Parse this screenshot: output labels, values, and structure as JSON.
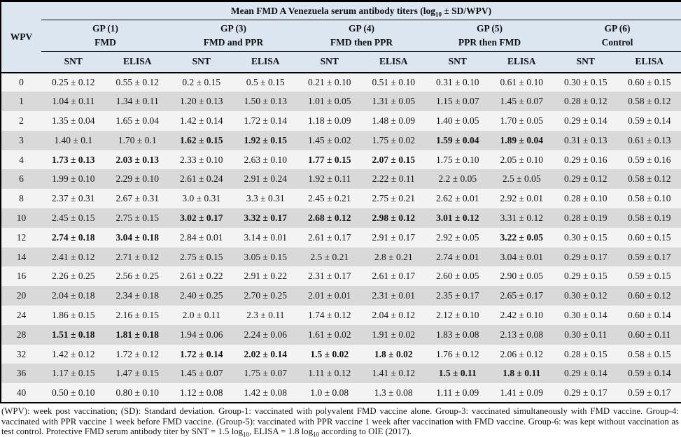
{
  "header": {
    "row_header": "WPV",
    "title_prefix": "Mean FMD A Venezuela serum antibody titers (log",
    "title_sub": "10",
    "title_suffix": " ± SD/WPV)",
    "groups": [
      {
        "label": "GP (1)",
        "sublabel": "FMD"
      },
      {
        "label": "GP (3)",
        "sublabel": "FMD and PPR"
      },
      {
        "label": "GP (4)",
        "sublabel": "FMD then PPR"
      },
      {
        "label": "GP (5)",
        "sublabel": "PPR then FMD"
      },
      {
        "label": "GP (6)",
        "sublabel": "Control"
      }
    ],
    "subcolumns": [
      "SNT",
      "ELISA"
    ]
  },
  "table": {
    "rows": [
      {
        "wpv": "0",
        "values": [
          "0.25 ± 0.12",
          "0.55 ± 0.12",
          "0.2 ± 0.15",
          "0.5 ± 0.15",
          "0.21 ± 0.10",
          "0.51 ± 0.10",
          "0.31 ± 0.10",
          "0.61 ± 0.10",
          "0.30 ± 0.15",
          "0.60 ± 0.15"
        ],
        "bold": []
      },
      {
        "wpv": "1",
        "values": [
          "1.04 ± 0.11",
          "1.34 ± 0.11",
          "1.20 ± 0.13",
          "1.50 ± 0.13",
          "1.01 ± 0.05",
          "1.31 ± 0.05",
          "1.15 ± 0.07",
          "1.45 ± 0.07",
          "0.28 ± 0.12",
          "0.58 ± 0.12"
        ],
        "bold": []
      },
      {
        "wpv": "2",
        "values": [
          "1.35 ± 0.04",
          "1.65 ± 0.04",
          "1.42 ± 0.14",
          "1.72 ± 0.14",
          "1.18 ± 0.09",
          "1.48 ± 0.09",
          "1.40 ± 0.05",
          "1.70 ± 0.05",
          "0.29 ± 0.14",
          "0.59 ± 0.14"
        ],
        "bold": []
      },
      {
        "wpv": "3",
        "values": [
          "1.40 ± 0.1",
          "1.70 ± 0.1",
          "1.62 ± 0.15",
          "1.92 ± 0.15",
          "1.45 ± 0.02",
          "1.75 ± 0.02",
          "1.59 ± 0.04",
          "1.89 ± 0.04",
          "0.31 ± 0.13",
          "0.61 ± 0.13"
        ],
        "bold": [
          2,
          3,
          6,
          7
        ]
      },
      {
        "wpv": "4",
        "values": [
          "1.73 ± 0.13",
          "2.03 ± 0.13",
          "2.33 ± 0.10",
          "2.63 ± 0.10",
          "1.77 ± 0.15",
          "2.07 ± 0.15",
          "1.75 ± 0.10",
          "2.05 ± 0.10",
          "0.29 ± 0.16",
          "0.59 ± 0.16"
        ],
        "bold": [
          0,
          1,
          4,
          5
        ]
      },
      {
        "wpv": "6",
        "values": [
          "1.99 ± 0.10",
          "2.29 ± 0.10",
          "2.61 ± 0.24",
          "2.91 ± 0.24",
          "1.92 ± 0.11",
          "2.22 ± 0.11",
          "2.2 ± 0.05",
          "2.5 ± 0.05",
          "0.29 ± 0.12",
          "0.58 ± 0.12"
        ],
        "bold": []
      },
      {
        "wpv": "8",
        "values": [
          "2.37 ± 0.31",
          "2.67 ± 0.31",
          "3.0 ± 0.31",
          "3.3 ± 0.31",
          "2.45 ± 0.21",
          "2.75 ± 0.21",
          "2.62 ± 0.01",
          "2.92 ± 0.01",
          "0.28 ± 0.10",
          "0.58 ± 0.10"
        ],
        "bold": []
      },
      {
        "wpv": "10",
        "values": [
          "2.45 ± 0.15",
          "2.75 ± 0.15",
          "3.02 ± 0.17",
          "3.32 ± 0.17",
          "2.68 ± 0.12",
          "2.98 ± 0.12",
          "3.01 ± 0.12",
          "3.31 ± 0.12",
          "0.28 ± 0.19",
          "0.58 ± 0.19"
        ],
        "bold": [
          2,
          3,
          4,
          5,
          6
        ]
      },
      {
        "wpv": "12",
        "values": [
          "2.74 ± 0.18",
          "3.04 ± 0.18",
          "2.84 ± 0.01",
          "3.14 ± 0.01",
          "2.61 ± 0.17",
          "2.91 ± 0.17",
          "2.92 ± 0.05",
          "3.22 ± 0.05",
          "0.30 ± 0.15",
          "0.60 ± 0.15"
        ],
        "bold": [
          0,
          1,
          7
        ]
      },
      {
        "wpv": "14",
        "values": [
          "2.41 ± 0.12",
          "2.71 ± 0.12",
          "2.75 ± 0.15",
          "3.05 ± 0.15",
          "2.5 ± 0.21",
          "2.8 ± 0.21",
          "2.74 ± 0.01",
          "3.04 ± 0.01",
          "0.29 ± 0.17",
          "0.59 ± 0.17"
        ],
        "bold": []
      },
      {
        "wpv": "16",
        "values": [
          "2.26 ± 0.25",
          "2.56 ± 0.25",
          "2.61 ± 0.22",
          "2.91 ± 0.22",
          "2.31 ± 0.17",
          "2.61 ± 0.17",
          "2.60 ± 0.05",
          "2.90 ± 0.05",
          "0.29 ± 0.15",
          "0.59 ± 0.15"
        ],
        "bold": []
      },
      {
        "wpv": "20",
        "values": [
          "2.04 ± 0.18",
          "2.34 ± 0.18",
          "2.40 ± 0.25",
          "2.70 ± 0.25",
          "2.01 ± 0.01",
          "2.31 ± 0.01",
          "2.35 ± 0.17",
          "2.65 ± 0.17",
          "0.30 ± 0.12",
          "0.60 ± 0.12"
        ],
        "bold": []
      },
      {
        "wpv": "24",
        "values": [
          "1.86 ± 0.15",
          "2.16 ± 0.15",
          "2.0 ± 0.11",
          "2.3 ± 0.11",
          "1.74 ± 0.12",
          "2.04 ± 0.12",
          "2.12 ± 0.10",
          "2.42 ± 0.10",
          "0.30 ± 0.14",
          "0.60 ± 0.14"
        ],
        "bold": []
      },
      {
        "wpv": "28",
        "values": [
          "1.51 ± 0.18",
          "1.81 ± 0.18",
          "1.94 ± 0.06",
          "2.24 ± 0.06",
          "1.61 ± 0.02",
          "1.91 ± 0.02",
          "1.83 ± 0.08",
          "2.13 ± 0.08",
          "0.30 ± 0.11",
          "0.60 ± 0.11"
        ],
        "bold": [
          0,
          1
        ]
      },
      {
        "wpv": "32",
        "values": [
          "1.42 ± 0.12",
          "1.72 ± 0.12",
          "1.72 ± 0.14",
          "2.02 ± 0.14",
          "1.5 ± 0.02",
          "1.8 ± 0.02",
          "1.76 ± 0.12",
          "2.06 ± 0.12",
          "0.28 ± 0.15",
          "0.58 ± 0.15"
        ],
        "bold": [
          2,
          3,
          4,
          5
        ]
      },
      {
        "wpv": "36",
        "values": [
          "1.17 ± 0.15",
          "1.47 ± 0.15",
          "1.45 ± 0.07",
          "1.75 ± 0.07",
          "1.11 ± 0.12",
          "1.41 ± 0.12",
          "1.5 ± 0.11",
          "1.8 ± 0.11",
          "0.29 ± 0.14",
          "0.59 ± 0.14"
        ],
        "bold": [
          6,
          7
        ]
      },
      {
        "wpv": "40",
        "values": [
          "0.50 ± 0.10",
          "0.80 ± 0.10",
          "1.12 ± 0.08",
          "1.42 ± 0.08",
          "1.0 ± 0.08",
          "1.3 ± 0.08",
          "1.11 ± 0.09",
          "1.41 ± 0.09",
          "0.29 ± 0.17",
          "0.59 ± 0.17"
        ],
        "bold": []
      }
    ]
  },
  "footnote": {
    "part1": "(WPV): week post vaccination; (SD): Standard deviation. Group-1: vaccinated with polyvalent FMD vaccine alone. Group-3: vaccinated simultaneously with FMD vaccine. Group-4: vaccinated with PPR vaccine 1 week before FMD vaccine. (Group-5): vaccinated with PPR vaccine 1 week after vaccination with FMD vaccine. Group-6: was kept without vaccination as test control. Protective FMD serum antibody titer by SNT = 1.5 log",
    "sub1": "10",
    "part2": ", ELISA = 1.8 log",
    "sub2": "10",
    "part3": " according to OIE (2017)."
  },
  "colors": {
    "header_bg": "#dce6f1",
    "stripe_gray": "#d9d9d9",
    "stripe_light": "#f3f3f3",
    "border": "#000000"
  }
}
